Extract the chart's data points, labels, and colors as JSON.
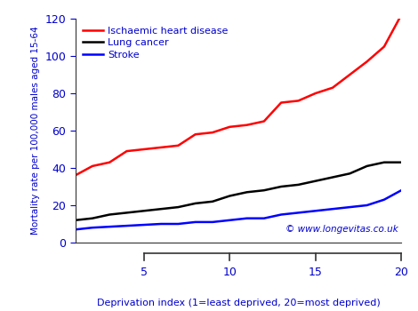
{
  "xlabel": "Deprivation index (1=least deprived, 20=most deprived)",
  "ylabel": "Mortality rate per 100,000 males aged 15-64",
  "watermark": "© www.longevitas.co.uk",
  "xlim": [
    1,
    20
  ],
  "ylim": [
    0,
    120
  ],
  "yticks": [
    0,
    20,
    40,
    60,
    80,
    100,
    120
  ],
  "xticks": [
    5,
    10,
    15,
    20
  ],
  "text_color": "#0000cc",
  "bg_color": "#ffffff",
  "spine_color": "#333333",
  "series": [
    {
      "label": "Ischaemic heart disease",
      "color": "#ff0000",
      "x": [
        1,
        2,
        3,
        4,
        5,
        6,
        7,
        8,
        9,
        10,
        11,
        12,
        13,
        14,
        15,
        16,
        17,
        18,
        19,
        20
      ],
      "y": [
        36,
        41,
        43,
        49,
        50,
        51,
        52,
        58,
        59,
        62,
        63,
        65,
        75,
        76,
        80,
        83,
        90,
        97,
        105,
        122
      ]
    },
    {
      "label": "Lung cancer",
      "color": "#000000",
      "x": [
        1,
        2,
        3,
        4,
        5,
        6,
        7,
        8,
        9,
        10,
        11,
        12,
        13,
        14,
        15,
        16,
        17,
        18,
        19,
        20
      ],
      "y": [
        12,
        13,
        15,
        16,
        17,
        18,
        19,
        21,
        22,
        25,
        27,
        28,
        30,
        31,
        33,
        35,
        37,
        41,
        43,
        43
      ]
    },
    {
      "label": "Stroke",
      "color": "#0000ff",
      "x": [
        1,
        2,
        3,
        4,
        5,
        6,
        7,
        8,
        9,
        10,
        11,
        12,
        13,
        14,
        15,
        16,
        17,
        18,
        19,
        20
      ],
      "y": [
        7,
        8,
        8.5,
        9,
        9.5,
        10,
        10,
        11,
        11,
        12,
        13,
        13,
        15,
        16,
        17,
        18,
        19,
        20,
        23,
        28
      ]
    }
  ]
}
